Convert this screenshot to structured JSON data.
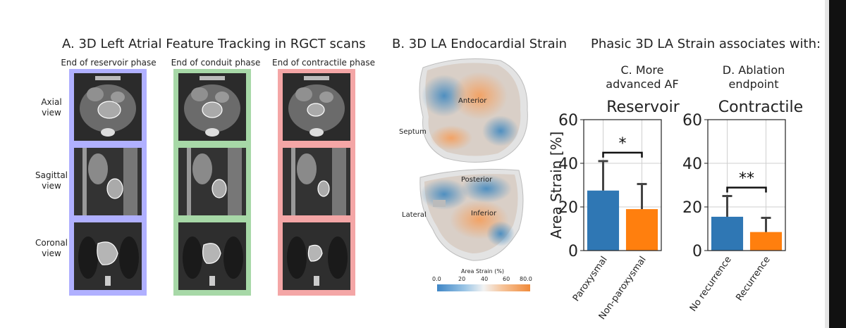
{
  "panel_a": {
    "title": "A. 3D Left Atrial Feature Tracking in RGCT scans",
    "phases": [
      "End of reservoir phase",
      "End of conduit phase",
      "End of contractile phase"
    ],
    "views": [
      [
        "Axial",
        "view"
      ],
      [
        "Sagittal",
        "view"
      ],
      [
        "Coronal",
        "view"
      ]
    ],
    "column_colors": [
      "#a9a9ff",
      "#a8d8a8",
      "#f4a8a8"
    ]
  },
  "panel_b": {
    "title": "B. 3D LA Endocardial Strain",
    "top_mesh": {
      "region": "Anterior",
      "side": "Septum"
    },
    "bottom_mesh": {
      "region_top": "Posterior",
      "region_bottom": "Inferior",
      "side": "Lateral"
    },
    "colorbar": {
      "title": "Area Strain (%)",
      "ticks": [
        "0.0",
        "20",
        "40",
        "60",
        "80.0"
      ]
    }
  },
  "panel_cd": {
    "title": "Phasic 3D LA Strain associates with:",
    "c_subtitle": [
      "C. More",
      "advanced AF"
    ],
    "d_subtitle": [
      "D. Ablation",
      "endpoint"
    ]
  },
  "chart_data": [
    {
      "type": "bar",
      "title": "Reservoir",
      "ylabel": "Area Strain [%]",
      "categories": [
        "Paroxysmal",
        "Non-paroxysmal"
      ],
      "values": [
        27.5,
        19
      ],
      "errors": [
        13.5,
        11.5
      ],
      "colors": [
        "#2f77b4",
        "#ff7f0e"
      ],
      "ylim": [
        0,
        60
      ],
      "yticks": [
        "0",
        "20",
        "40",
        "60"
      ],
      "significance": "*",
      "grid": true
    },
    {
      "type": "bar",
      "title": "Contractile",
      "ylabel": "",
      "categories": [
        "No recurrence",
        "Recurrence"
      ],
      "values": [
        15.5,
        8.5
      ],
      "errors": [
        9.5,
        6.5
      ],
      "colors": [
        "#2f77b4",
        "#ff7f0e"
      ],
      "ylim": [
        0,
        60
      ],
      "yticks": [
        "0",
        "20",
        "40",
        "60"
      ],
      "significance": "**",
      "grid": true
    }
  ]
}
